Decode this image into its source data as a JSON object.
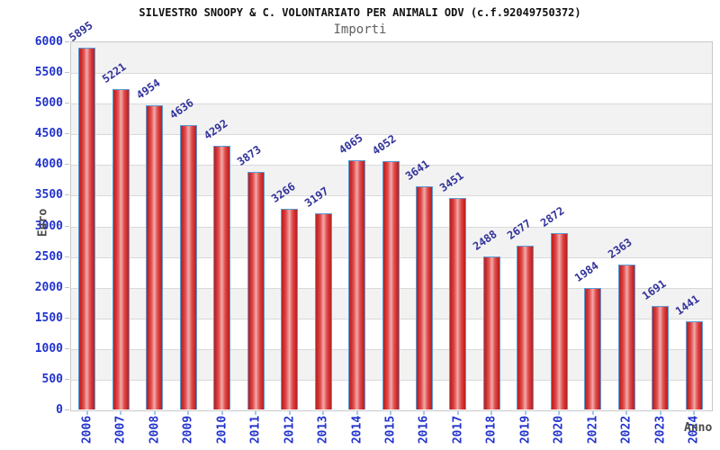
{
  "chart_data": {
    "type": "bar",
    "title": "SILVESTRO SNOOPY & C. VOLONTARIATO PER ANIMALI ODV (c.f.92049750372)",
    "subtitle": "Importi",
    "xlabel": "Anno",
    "ylabel": "Euro",
    "categories": [
      "2006",
      "2007",
      "2008",
      "2009",
      "2010",
      "2011",
      "2012",
      "2013",
      "2014",
      "2015",
      "2016",
      "2017",
      "2018",
      "2019",
      "2020",
      "2021",
      "2022",
      "2023",
      "2024"
    ],
    "values": [
      5895,
      5221,
      4954,
      4636,
      4292,
      3873,
      3266,
      3197,
      4065,
      4052,
      3641,
      3451,
      2488,
      2677,
      2872,
      1984,
      2363,
      1691,
      1441
    ],
    "ylim": [
      0,
      6000
    ],
    "ytick_step": 500,
    "grid": true,
    "legend": "none",
    "value_labels_shown": true,
    "colors": {
      "bar_fill_dark": "#b82323",
      "bar_fill_light": "#f2abab",
      "bar_border": "#5b9bd5",
      "axis_tick_text": "#2233cc",
      "value_label_text": "#32329b",
      "band_shade": "#f2f2f2",
      "grid_line": "#d9d9d9",
      "title_text": "#111111",
      "subtitle_text": "#606060",
      "axis_title_text": "#4a4a4a"
    }
  }
}
